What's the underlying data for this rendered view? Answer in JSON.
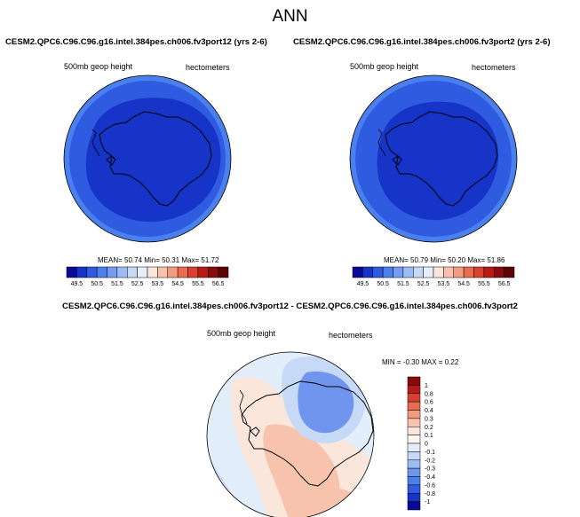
{
  "figure": {
    "title": "ANN"
  },
  "panels": [
    {
      "case": "CESM2.QPC6.C96.C96.g16.intel.384pes.ch006.fv3port12 (yrs 2-6)",
      "variable": "500mb geop height",
      "units": "hectometers",
      "stats": {
        "mean_label": "MEAN=",
        "mean": "50.74",
        "min_label": "Min=",
        "min": "50.31",
        "max_label": "Max=",
        "max": "51.72"
      }
    },
    {
      "case": "CESM2.QPC6.C96.C96.g16.intel.384pes.ch006.fv3port2 (yrs 2-6)",
      "variable": "500mb geop height",
      "units": "hectometers",
      "stats": {
        "mean_label": "MEAN=",
        "mean": "50.79",
        "min_label": "Min=",
        "min": "50.20",
        "max_label": "Max=",
        "max": "51.86"
      }
    }
  ],
  "diff_panel": {
    "title": "CESM2.QPC6.C96.C96.g16.intel.384pes.ch006.fv3port12 - CESM2.QPC6.C96.C96.g16.intel.384pes.ch006.fv3port2",
    "variable": "500mb geop height",
    "units": "hectometers",
    "stats": "MIN = -0.30 MAX = 0.22"
  },
  "chart_data": [
    {
      "type": "heatmap",
      "projection": "south polar stereographic",
      "variable": "500mb geop height",
      "units": "hectometers",
      "stats": {
        "mean": 50.74,
        "min": 50.31,
        "max": 51.72
      },
      "colorbar": {
        "orientation": "horizontal",
        "levels": [
          49.5,
          50.0,
          50.5,
          51.0,
          51.5,
          52.0,
          52.5,
          53.0,
          53.5,
          54.0,
          54.5,
          55.0,
          55.5,
          56.0,
          56.5
        ],
        "tick_labels": [
          "49.5",
          "50.5",
          "51.5",
          "52.5",
          "53.5",
          "54.5",
          "55.5",
          "56.5"
        ],
        "colors": [
          "#0a0a96",
          "#1734c8",
          "#2e5be0",
          "#4a7fee",
          "#759cf2",
          "#9dbcf4",
          "#c6d9f6",
          "#e6eefa",
          "#fbe6dc",
          "#f7c3ad",
          "#f39b7e",
          "#ea6b4e",
          "#d94030",
          "#b81a16",
          "#8a0b0b",
          "#5c0505"
        ]
      },
      "contours": [
        {
          "band": "50.0-50.5",
          "color": "#1734c8",
          "region": "core over Antarctica"
        },
        {
          "band": "50.5-51.0",
          "color": "#2e5be0",
          "region": "main ring"
        },
        {
          "band": "51.0-51.5",
          "color": "#4a7fee",
          "region": "outer ring"
        },
        {
          "band": "51.5-52.0",
          "color": "#759cf2",
          "region": "outer edge"
        }
      ]
    },
    {
      "type": "heatmap",
      "projection": "south polar stereographic",
      "variable": "500mb geop height",
      "units": "hectometers",
      "stats": {
        "mean": 50.79,
        "min": 50.2,
        "max": 51.86
      },
      "colorbar": {
        "orientation": "horizontal",
        "levels": [
          49.5,
          50.0,
          50.5,
          51.0,
          51.5,
          52.0,
          52.5,
          53.0,
          53.5,
          54.0,
          54.5,
          55.0,
          55.5,
          56.0,
          56.5
        ],
        "tick_labels": [
          "49.5",
          "50.5",
          "51.5",
          "52.5",
          "53.5",
          "54.5",
          "55.5",
          "56.5"
        ],
        "colors": [
          "#0a0a96",
          "#1734c8",
          "#2e5be0",
          "#4a7fee",
          "#759cf2",
          "#9dbcf4",
          "#c6d9f6",
          "#e6eefa",
          "#fbe6dc",
          "#f7c3ad",
          "#f39b7e",
          "#ea6b4e",
          "#d94030",
          "#b81a16",
          "#8a0b0b",
          "#5c0505"
        ]
      },
      "contours": [
        {
          "band": "50.0-50.5",
          "color": "#1734c8",
          "region": "core over Antarctica"
        },
        {
          "band": "50.5-51.0",
          "color": "#2e5be0",
          "region": "main ring"
        },
        {
          "band": "51.0-51.5",
          "color": "#4a7fee",
          "region": "outer ring"
        },
        {
          "band": "51.5-52.0",
          "color": "#759cf2",
          "region": "outer edge"
        }
      ]
    },
    {
      "type": "heatmap",
      "projection": "south polar stereographic",
      "variable": "500mb geop height",
      "units": "hectometers",
      "stats": {
        "min": -0.3,
        "max": 0.22
      },
      "colorbar": {
        "orientation": "vertical",
        "levels": [
          -1,
          -0.8,
          -0.6,
          -0.4,
          -0.3,
          -0.2,
          -0.1,
          0,
          0.1,
          0.2,
          0.3,
          0.4,
          0.6,
          0.8,
          1
        ],
        "tick_labels": [
          "1",
          "0.8",
          "0.6",
          "0.4",
          "0.3",
          "0.2",
          "0.1",
          "0",
          "-0.1",
          "-0.2",
          "-0.3",
          "-0.4",
          "-0.6",
          "-0.8",
          "-1"
        ],
        "colors": [
          "#8a0b0b",
          "#b81a16",
          "#d94030",
          "#ea6b4e",
          "#f39b7e",
          "#f7c3ad",
          "#fbe6dc",
          "#fdf6ef",
          "#e3eefb",
          "#c6d9f6",
          "#9dbcf4",
          "#6f95ee",
          "#4a7fee",
          "#2e5be0",
          "#1734c8",
          "#0a0a96"
        ]
      },
      "contours": [
        {
          "band": "-0.1-0",
          "color": "#e3eefb",
          "region": "background"
        },
        {
          "band": "0-0.1",
          "color": "#fbe6dc",
          "region": "Antarctic interior and coast"
        },
        {
          "band": "0.1-0.2",
          "color": "#f7c3ad",
          "region": "central and lower interior"
        },
        {
          "band": "-0.2--0.1",
          "color": "#c6d9f6",
          "region": "around east Antarctica and lower left"
        },
        {
          "band": "-0.3--0.2",
          "color": "#6f95ee",
          "region": "east Antarctica minimum and lower left"
        }
      ]
    }
  ]
}
